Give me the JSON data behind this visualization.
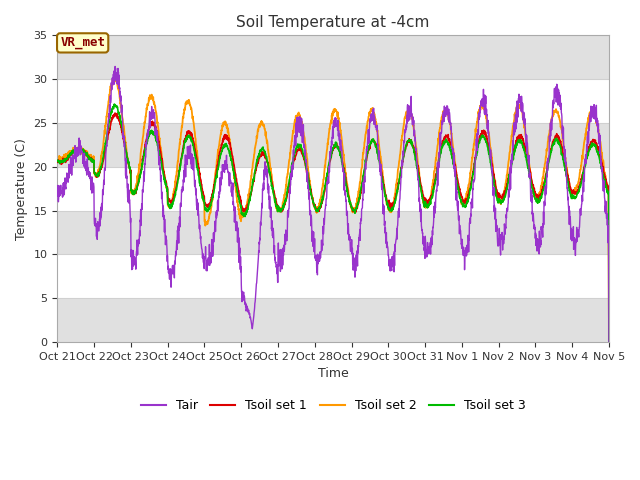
{
  "title": "Soil Temperature at -4cm",
  "xlabel": "Time",
  "ylabel": "Temperature (C)",
  "ylim": [
    0,
    35
  ],
  "fig_facecolor": "#ffffff",
  "plot_facecolor": "#ffffff",
  "band_color": "#e0e0e0",
  "band_ranges": [
    [
      0,
      5
    ],
    [
      10,
      15
    ],
    [
      20,
      25
    ],
    [
      30,
      35
    ]
  ],
  "grid_color": "#d0d0d0",
  "annotation": "VR_met",
  "xtick_labels": [
    "Oct 21",
    "Oct 22",
    "Oct 23",
    "Oct 24",
    "Oct 25",
    "Oct 26",
    "Oct 27",
    "Oct 28",
    "Oct 29",
    "Oct 30",
    "Oct 31",
    "Nov 1",
    "Nov 2",
    "Nov 3",
    "Nov 4",
    "Nov 5"
  ],
  "line_colors": {
    "Tair": "#9933cc",
    "Tsoil_set1": "#dd0000",
    "Tsoil_set2": "#ff9900",
    "Tsoil_set3": "#00bb00"
  },
  "legend_labels": [
    "Tair",
    "Tsoil set 1",
    "Tsoil set 2",
    "Tsoil set 3"
  ],
  "num_days": 15,
  "ppd": 144,
  "tair_day_peaks": [
    22.0,
    31.0,
    26.0,
    21.5,
    20.0,
    20.5,
    25.0,
    25.0,
    26.0,
    26.5,
    26.5,
    27.5,
    27.5,
    28.5,
    26.5
  ],
  "tair_ngt_mins": [
    17.0,
    13.0,
    9.0,
    7.5,
    9.0,
    6.5,
    9.5,
    9.0,
    9.0,
    8.5,
    10.5,
    10.0,
    11.5,
    11.0,
    11.5
  ],
  "ts2_day_peaks": [
    22.0,
    30.0,
    28.0,
    27.5,
    25.0,
    25.0,
    26.0,
    26.5,
    26.5,
    26.5,
    26.5,
    27.0,
    27.0,
    26.5,
    26.5
  ],
  "ts2_ngt_mins": [
    21.0,
    19.0,
    17.0,
    15.5,
    13.5,
    14.5,
    15.0,
    15.0,
    15.0,
    15.0,
    15.5,
    16.0,
    16.0,
    16.5,
    17.0
  ],
  "ts1_day_peaks": [
    22.0,
    26.0,
    25.0,
    24.0,
    23.5,
    21.5,
    22.0,
    22.5,
    23.0,
    23.0,
    23.5,
    24.0,
    23.5,
    23.5,
    23.0
  ],
  "ts1_ngt_mins": [
    20.5,
    19.0,
    17.0,
    16.0,
    15.5,
    15.0,
    15.0,
    15.0,
    15.0,
    15.5,
    16.0,
    16.0,
    16.5,
    16.5,
    17.0
  ],
  "ts3_day_peaks": [
    22.0,
    27.0,
    24.0,
    23.5,
    22.5,
    22.0,
    22.5,
    22.5,
    23.0,
    23.0,
    23.0,
    23.5,
    23.0,
    23.0,
    22.5
  ],
  "ts3_ngt_mins": [
    20.5,
    19.0,
    17.0,
    15.5,
    15.0,
    14.5,
    15.0,
    15.0,
    15.0,
    15.0,
    15.5,
    15.5,
    16.0,
    16.0,
    16.5
  ],
  "tair_spike_day": 5,
  "tair_spike_val": 1.5
}
